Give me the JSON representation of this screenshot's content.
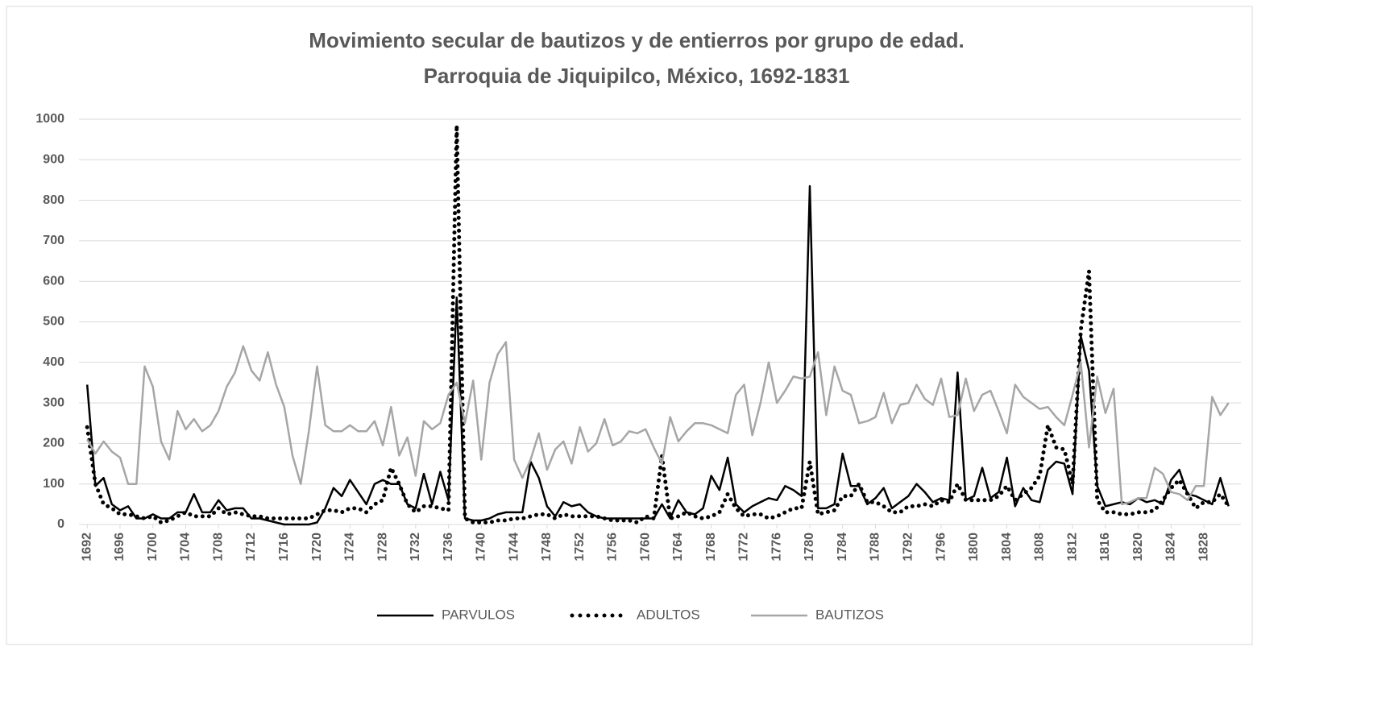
{
  "chart_data": {
    "type": "line",
    "title": "Movimiento secular de bautizos y de entierros por grupo de edad.",
    "subtitle": "Parroquia de Jiquipilco, México, 1692-1831",
    "x": [
      1692,
      1693,
      1694,
      1695,
      1696,
      1697,
      1698,
      1699,
      1700,
      1701,
      1702,
      1703,
      1704,
      1705,
      1706,
      1707,
      1708,
      1709,
      1710,
      1711,
      1712,
      1713,
      1714,
      1715,
      1716,
      1717,
      1718,
      1719,
      1720,
      1721,
      1722,
      1723,
      1724,
      1725,
      1726,
      1727,
      1728,
      1729,
      1730,
      1731,
      1732,
      1733,
      1734,
      1735,
      1736,
      1737,
      1738,
      1739,
      1740,
      1741,
      1742,
      1743,
      1744,
      1745,
      1746,
      1747,
      1748,
      1749,
      1750,
      1751,
      1752,
      1753,
      1754,
      1755,
      1756,
      1757,
      1758,
      1759,
      1760,
      1761,
      1762,
      1763,
      1764,
      1765,
      1766,
      1767,
      1768,
      1769,
      1770,
      1771,
      1772,
      1773,
      1774,
      1775,
      1776,
      1777,
      1778,
      1779,
      1780,
      1781,
      1782,
      1783,
      1784,
      1785,
      1786,
      1787,
      1788,
      1789,
      1790,
      1791,
      1792,
      1793,
      1794,
      1795,
      1796,
      1797,
      1798,
      1799,
      1800,
      1801,
      1802,
      1803,
      1804,
      1805,
      1806,
      1807,
      1808,
      1809,
      1810,
      1811,
      1812,
      1813,
      1814,
      1815,
      1816,
      1817,
      1818,
      1819,
      1820,
      1821,
      1822,
      1823,
      1824,
      1825,
      1826,
      1827,
      1828,
      1829,
      1830,
      1831
    ],
    "series": [
      {
        "name": "PARVULOS",
        "color": "#000000",
        "style": "solid",
        "values": [
          345,
          95,
          115,
          50,
          35,
          45,
          15,
          15,
          25,
          15,
          15,
          30,
          30,
          75,
          30,
          30,
          60,
          35,
          40,
          40,
          15,
          15,
          10,
          5,
          0,
          0,
          0,
          0,
          5,
          40,
          90,
          70,
          110,
          80,
          50,
          100,
          110,
          100,
          100,
          50,
          40,
          125,
          50,
          130,
          60,
          560,
          15,
          10,
          10,
          15,
          25,
          30,
          30,
          30,
          155,
          115,
          45,
          20,
          55,
          45,
          50,
          30,
          20,
          15,
          15,
          15,
          15,
          15,
          15,
          15,
          50,
          15,
          60,
          30,
          25,
          40,
          120,
          85,
          165,
          50,
          30,
          45,
          55,
          65,
          60,
          95,
          85,
          70,
          835,
          40,
          40,
          50,
          175,
          95,
          95,
          50,
          65,
          90,
          40,
          55,
          70,
          100,
          80,
          55,
          65,
          60,
          375,
          60,
          70,
          140,
          65,
          80,
          165,
          45,
          90,
          60,
          55,
          135,
          155,
          150,
          75,
          465,
          380,
          95,
          45,
          50,
          55,
          50,
          65,
          55,
          60,
          50,
          110,
          135,
          75,
          70,
          60,
          50,
          115,
          45
        ]
      },
      {
        "name": "ADULTOS",
        "color": "#000000",
        "style": "dotted",
        "values": [
          240,
          100,
          50,
          40,
          25,
          25,
          20,
          15,
          20,
          5,
          10,
          20,
          30,
          20,
          20,
          20,
          40,
          25,
          30,
          25,
          20,
          20,
          15,
          15,
          15,
          15,
          15,
          15,
          25,
          35,
          35,
          30,
          40,
          40,
          30,
          50,
          60,
          140,
          100,
          50,
          30,
          45,
          45,
          40,
          35,
          985,
          15,
          5,
          5,
          5,
          10,
          10,
          15,
          15,
          20,
          25,
          25,
          15,
          25,
          20,
          20,
          20,
          20,
          15,
          10,
          10,
          10,
          5,
          20,
          15,
          170,
          15,
          20,
          30,
          20,
          15,
          20,
          30,
          75,
          40,
          20,
          25,
          25,
          15,
          20,
          30,
          40,
          40,
          155,
          25,
          30,
          35,
          70,
          70,
          100,
          55,
          55,
          45,
          30,
          30,
          45,
          45,
          50,
          45,
          60,
          55,
          100,
          60,
          60,
          60,
          60,
          70,
          95,
          60,
          75,
          90,
          120,
          245,
          190,
          185,
          100,
          480,
          625,
          60,
          30,
          30,
          25,
          25,
          30,
          30,
          35,
          60,
          90,
          110,
          75,
          40,
          55,
          55,
          75,
          45
        ]
      },
      {
        "name": "BAUTIZOS",
        "color": "#a6a6a6",
        "style": "solid",
        "values": [
          210,
          175,
          205,
          180,
          165,
          100,
          100,
          390,
          340,
          205,
          160,
          280,
          235,
          260,
          230,
          245,
          280,
          340,
          375,
          440,
          380,
          355,
          425,
          345,
          290,
          170,
          100,
          230,
          390,
          245,
          230,
          230,
          245,
          230,
          230,
          255,
          195,
          290,
          170,
          215,
          120,
          255,
          235,
          250,
          320,
          350,
          250,
          355,
          160,
          350,
          420,
          450,
          160,
          115,
          160,
          225,
          135,
          185,
          205,
          150,
          240,
          180,
          200,
          260,
          195,
          205,
          230,
          225,
          235,
          190,
          150,
          265,
          205,
          230,
          250,
          250,
          245,
          235,
          225,
          320,
          345,
          220,
          300,
          400,
          300,
          330,
          365,
          360,
          365,
          425,
          270,
          390,
          330,
          320,
          250,
          255,
          265,
          325,
          250,
          295,
          300,
          345,
          310,
          295,
          360,
          265,
          270,
          360,
          280,
          320,
          330,
          280,
          225,
          345,
          315,
          300,
          285,
          290,
          265,
          245,
          320,
          400,
          190,
          365,
          275,
          335,
          50,
          55,
          65,
          65,
          140,
          125,
          80,
          75,
          60,
          95,
          95,
          315,
          270,
          300
        ]
      }
    ],
    "xlim": [
      1691,
      1832.5
    ],
    "xticks": [
      1692,
      1696,
      1700,
      1704,
      1708,
      1712,
      1716,
      1720,
      1724,
      1728,
      1732,
      1736,
      1740,
      1744,
      1748,
      1752,
      1756,
      1760,
      1764,
      1768,
      1772,
      1776,
      1780,
      1784,
      1788,
      1792,
      1796,
      1800,
      1804,
      1808,
      1812,
      1816,
      1820,
      1824,
      1828
    ],
    "ylim": [
      0,
      1000
    ],
    "yticks": [
      0,
      100,
      200,
      300,
      400,
      500,
      600,
      700,
      800,
      900,
      1000
    ],
    "grid": true,
    "legend": "bottom"
  }
}
